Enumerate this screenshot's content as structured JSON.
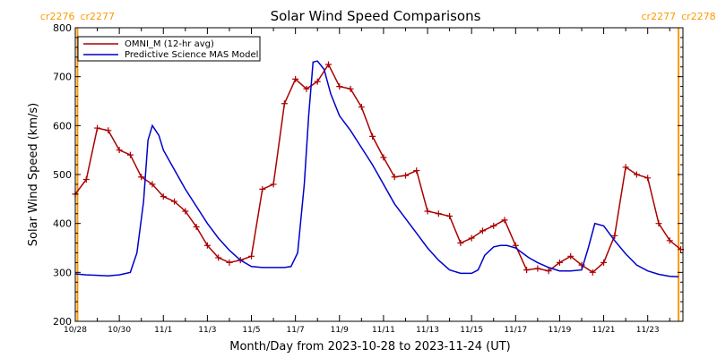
{
  "chart_data": {
    "type": "line",
    "title": "Solar Wind Speed Comparisons",
    "xlabel": "Month/Day from 2023-10-28 to 2023-11-24 (UT)",
    "ylabel": "Solar Wind Speed (km/s)",
    "xlim": [
      0,
      27.6
    ],
    "ylim": [
      200,
      800
    ],
    "yticks": [
      200,
      300,
      400,
      500,
      600,
      700,
      800
    ],
    "x_unit": "days since 2023-10-28",
    "xticks": [
      {
        "x": 0,
        "label": "10/28"
      },
      {
        "x": 2,
        "label": "10/30"
      },
      {
        "x": 4,
        "label": "11/1"
      },
      {
        "x": 6,
        "label": "11/3"
      },
      {
        "x": 8,
        "label": "11/5"
      },
      {
        "x": 10,
        "label": "11/7"
      },
      {
        "x": 12,
        "label": "11/9"
      },
      {
        "x": 14,
        "label": "11/11"
      },
      {
        "x": 16,
        "label": "11/13"
      },
      {
        "x": 18,
        "label": "11/15"
      },
      {
        "x": 20,
        "label": "11/17"
      },
      {
        "x": 22,
        "label": "11/19"
      },
      {
        "x": 24,
        "label": "11/21"
      },
      {
        "x": 26,
        "label": "11/23"
      }
    ],
    "rotations": [
      {
        "x": 0.1,
        "left_label": "cr2276",
        "right_label": "cr2277"
      },
      {
        "x": 27.4,
        "left_label": "cr2277",
        "right_label": "cr2278"
      }
    ],
    "grid": false,
    "legend_position": "top-left",
    "series": [
      {
        "name": "OMNI_M (12-hr avg)",
        "color": "#aa0000",
        "markers": true,
        "x": [
          0,
          0.5,
          1,
          1.5,
          2,
          2.5,
          3,
          3.5,
          4,
          4.5,
          5,
          5.5,
          6,
          6.5,
          7,
          7.5,
          8,
          8.5,
          9,
          9.5,
          10,
          10.5,
          11,
          11.5,
          12,
          12.5,
          13,
          13.5,
          14,
          14.5,
          15,
          15.5,
          16,
          16.5,
          17,
          17.5,
          18,
          18.5,
          19,
          19.5,
          20,
          20.5,
          21,
          21.5,
          22,
          22.5,
          23,
          23.5,
          24,
          24.5,
          25,
          25.5,
          26,
          26.5,
          27,
          27.5
        ],
        "values": [
          460,
          490,
          595,
          590,
          550,
          540,
          495,
          480,
          455,
          445,
          425,
          393,
          355,
          330,
          320,
          325,
          333,
          470,
          480,
          645,
          695,
          675,
          690,
          725,
          680,
          675,
          638,
          578,
          535,
          495,
          498,
          508,
          425,
          420,
          415,
          360,
          370,
          385,
          395,
          407,
          355,
          305,
          308,
          303,
          320,
          333,
          315,
          300,
          320,
          375,
          515,
          500,
          493,
          400,
          365,
          347
        ]
      },
      {
        "name": "Predictive Science MAS Model",
        "color": "#0000cc",
        "markers": false,
        "x": [
          0,
          0.5,
          1,
          1.5,
          2,
          2.5,
          2.8,
          3.1,
          3.3,
          3.5,
          3.8,
          4,
          4.5,
          5,
          5.5,
          6,
          6.5,
          7,
          7.5,
          8,
          8.5,
          9,
          9.5,
          9.8,
          10.1,
          10.4,
          10.6,
          10.8,
          11,
          11.3,
          11.6,
          12,
          12.5,
          13,
          13.5,
          14,
          14.5,
          15,
          15.5,
          16,
          16.5,
          17,
          17.5,
          18,
          18.3,
          18.6,
          19,
          19.3,
          19.6,
          20,
          20.3,
          20.6,
          21,
          21.5,
          22,
          22.5,
          23,
          23.3,
          23.6,
          24,
          24.5,
          25,
          25.5,
          26,
          26.5,
          27,
          27.4
        ],
        "values": [
          297,
          295,
          294,
          293,
          295,
          300,
          340,
          445,
          570,
          600,
          580,
          550,
          510,
          470,
          435,
          400,
          370,
          345,
          325,
          312,
          310,
          310,
          310,
          312,
          340,
          480,
          620,
          730,
          732,
          715,
          665,
          620,
          590,
          555,
          520,
          480,
          440,
          410,
          380,
          350,
          325,
          305,
          298,
          298,
          305,
          335,
          352,
          355,
          355,
          350,
          340,
          330,
          320,
          310,
          303,
          303,
          305,
          350,
          400,
          395,
          365,
          338,
          315,
          303,
          296,
          292,
          291
        ]
      }
    ]
  }
}
